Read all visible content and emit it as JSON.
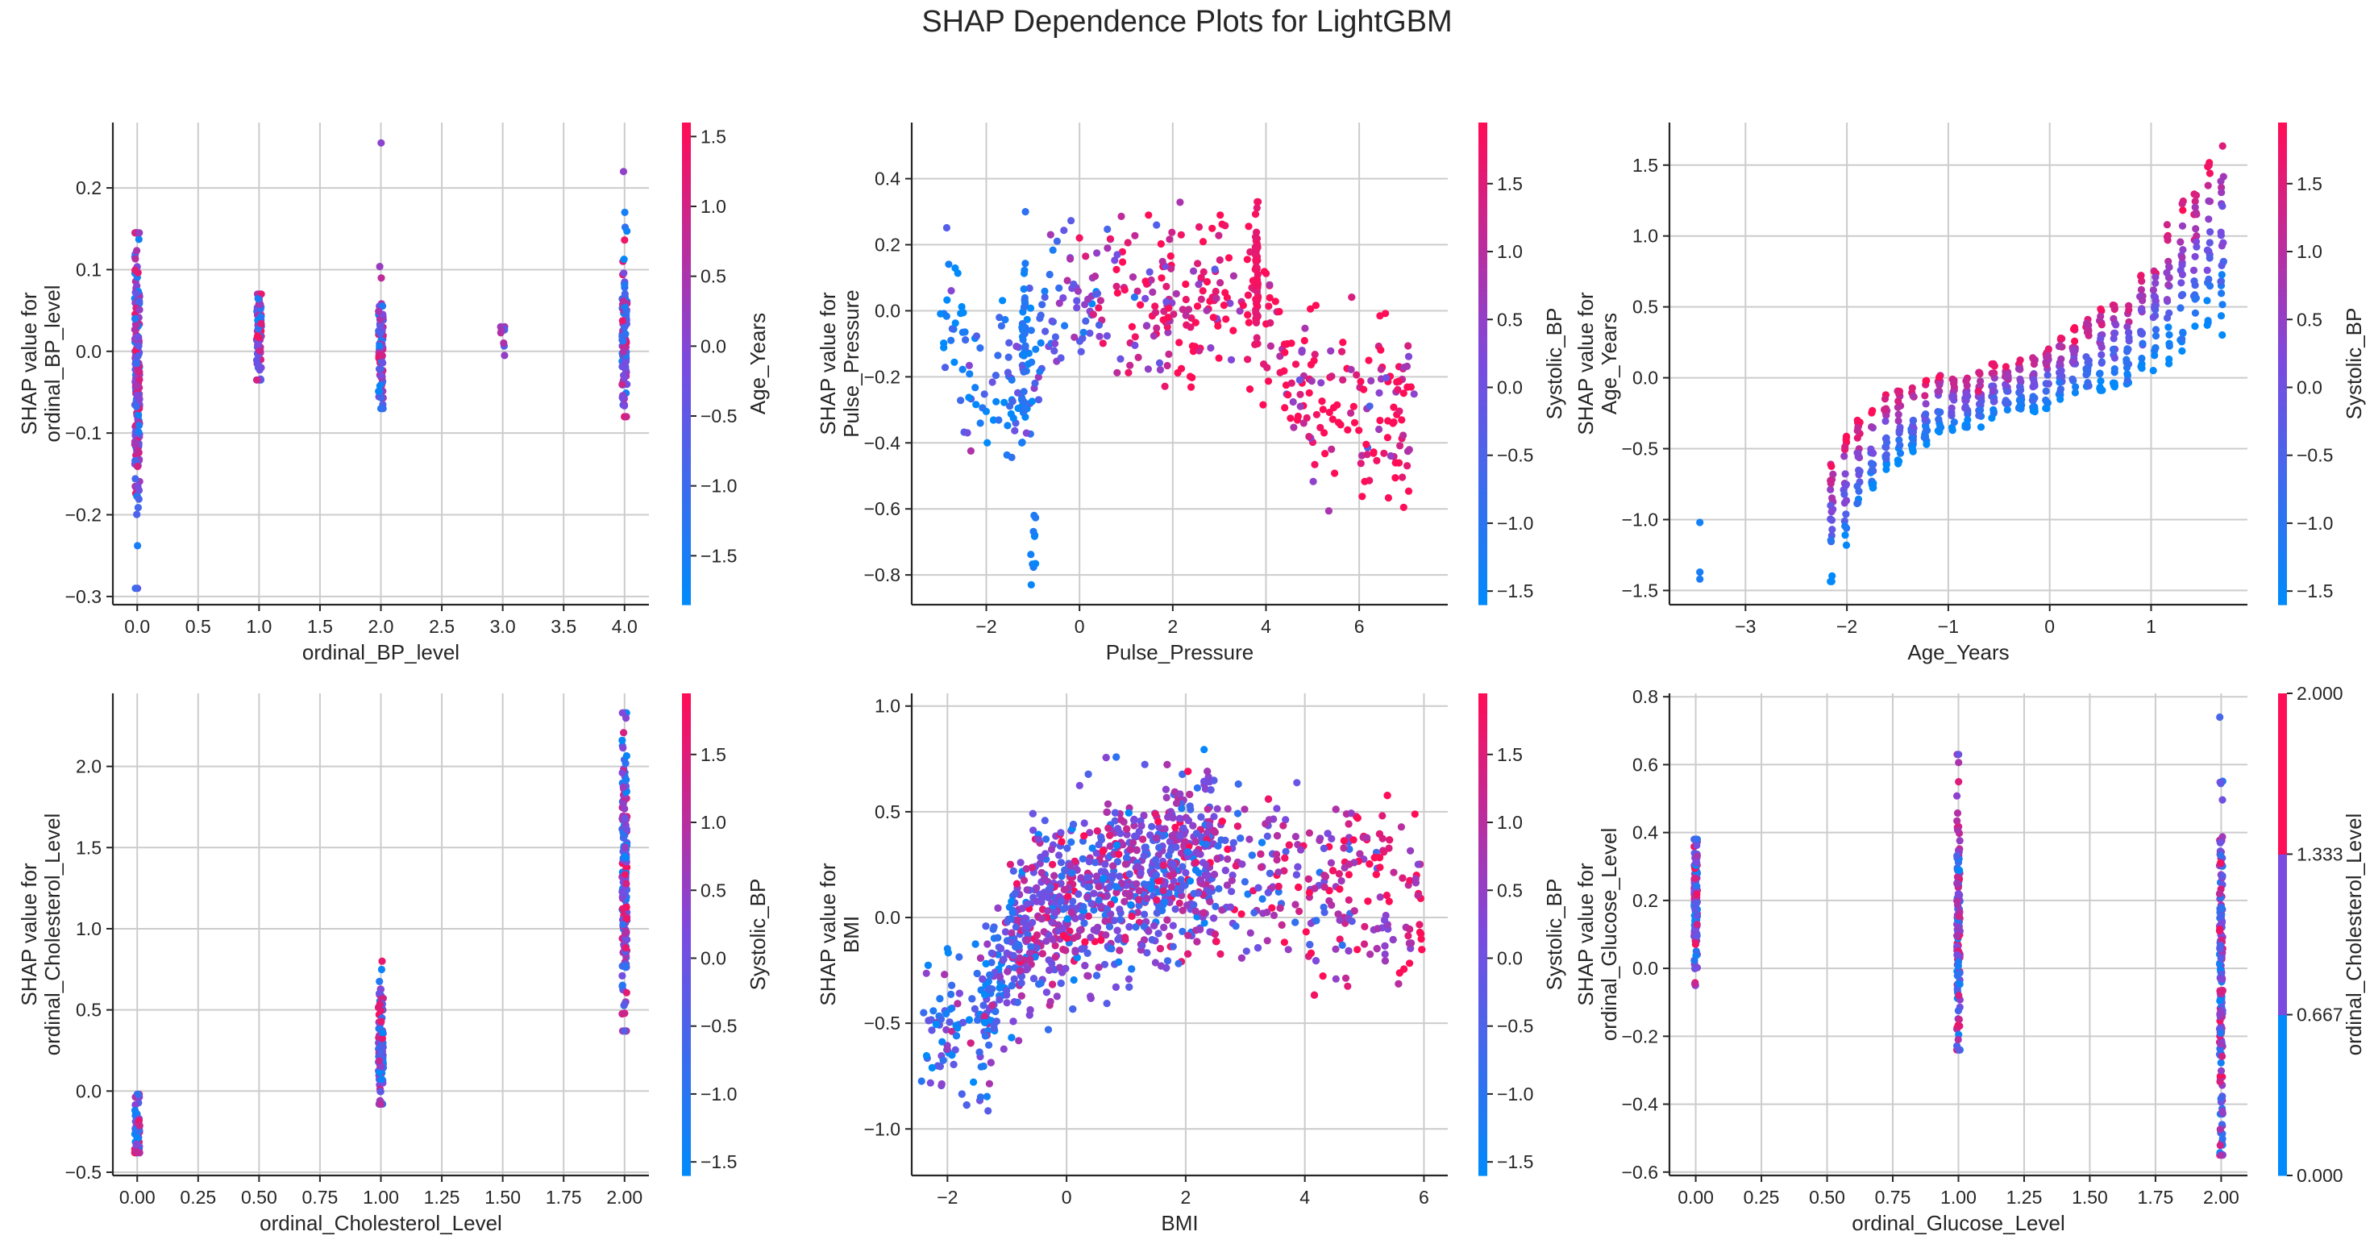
{
  "figure": {
    "suptitle": "SHAP Dependence Plots for LightGBM"
  },
  "colors": {
    "low": "#008afb",
    "mid": "#7a4be0",
    "high": "#ff0d57",
    "grid": "#cccccc",
    "axis": "#262626"
  },
  "chart_data": [
    {
      "type": "scatter",
      "xlabel": "ordinal_BP_level",
      "ylabel": "SHAP value for\nordinal_BP_level",
      "xlim": [
        -0.2,
        4.2
      ],
      "ylim": [
        -0.31,
        0.28
      ],
      "xticks": [
        0.0,
        0.5,
        1.0,
        1.5,
        2.0,
        2.5,
        3.0,
        3.5,
        4.0
      ],
      "xticklabels": [
        "0.0",
        "0.5",
        "1.0",
        "1.5",
        "2.0",
        "2.5",
        "3.0",
        "3.5",
        "4.0"
      ],
      "yticks": [
        -0.3,
        -0.2,
        -0.1,
        0.0,
        0.1,
        0.2
      ],
      "yticklabels": [
        "−0.3",
        "−0.2",
        "−0.1",
        "0.0",
        "0.1",
        "0.2"
      ],
      "colorbar": {
        "label": "Age_Years",
        "range": [
          -1.85,
          1.6
        ],
        "ticks": [
          -1.5,
          -1.0,
          -0.5,
          0.0,
          0.5,
          1.0,
          1.5
        ],
        "ticklabels": [
          "−1.5",
          "−1.0",
          "−0.5",
          "0.0",
          "0.5",
          "1.0",
          "1.5"
        ]
      },
      "clusters": [
        {
          "x": 0,
          "jitter": 0.02,
          "ymin": -0.29,
          "ymax": 0.145,
          "n": 220,
          "ymean": -0.02,
          "ysd": 0.085,
          "cmin": -1.8,
          "cmax": 1.5
        },
        {
          "x": 1,
          "jitter": 0.02,
          "ymin": -0.035,
          "ymax": 0.07,
          "n": 70,
          "ymean": 0.015,
          "ysd": 0.025,
          "cmin": -1.8,
          "cmax": 1.5
        },
        {
          "x": 2,
          "jitter": 0.02,
          "ymin": -0.07,
          "ymax": 0.255,
          "n": 90,
          "ymean": 0.0,
          "ysd": 0.04,
          "cmin": -1.8,
          "cmax": 1.5
        },
        {
          "x": 3,
          "jitter": 0.02,
          "ymin": -0.005,
          "ymax": 0.03,
          "n": 8,
          "ymean": 0.01,
          "ysd": 0.01,
          "cmin": -1.0,
          "cmax": 1.0
        },
        {
          "x": 4,
          "jitter": 0.02,
          "ymin": -0.08,
          "ymax": 0.22,
          "n": 110,
          "ymean": 0.01,
          "ysd": 0.055,
          "cmin": -1.8,
          "cmax": 1.5
        }
      ]
    },
    {
      "type": "scatter",
      "xlabel": "Pulse_Pressure",
      "ylabel": "SHAP value for\nPulse_Pressure",
      "xlim": [
        -3.6,
        7.9
      ],
      "ylim": [
        -0.89,
        0.57
      ],
      "xticks": [
        -2,
        0,
        2,
        4,
        6
      ],
      "xticklabels": [
        "−2",
        "0",
        "2",
        "4",
        "6"
      ],
      "yticks": [
        -0.8,
        -0.6,
        -0.4,
        -0.2,
        0.0,
        0.2,
        0.4
      ],
      "yticklabels": [
        "−0.8",
        "−0.6",
        "−0.4",
        "−0.2",
        "0.0",
        "0.2",
        "0.4"
      ],
      "colorbar": {
        "label": "Systolic_BP",
        "range": [
          -1.6,
          1.95
        ],
        "ticks": [
          -1.5,
          -1.0,
          -0.5,
          0.0,
          0.5,
          1.0,
          1.5
        ],
        "ticklabels": [
          "−1.5",
          "−1.0",
          "−0.5",
          "0.0",
          "0.5",
          "1.0",
          "1.5"
        ]
      },
      "curve": {
        "x": [
          -3.0,
          -2.2,
          -1.2,
          -0.6,
          0.0,
          0.8,
          1.6,
          2.4,
          3.0,
          3.8,
          4.4,
          5.2,
          6.0,
          7.2
        ],
        "y": [
          0.02,
          -0.22,
          -0.22,
          0.0,
          -0.02,
          0.05,
          0.06,
          0.05,
          0.06,
          0.05,
          -0.2,
          -0.3,
          -0.3,
          -0.35
        ],
        "spread": 0.12,
        "n": 480,
        "xspread": 0.12,
        "c": [
          -1.5,
          -1.3,
          -1.0,
          -0.3,
          0.0,
          1.2,
          1.5,
          1.6,
          1.6,
          1.7,
          1.8,
          1.8,
          1.8,
          1.8
        ]
      },
      "extra": [
        {
          "x": -1.0,
          "jitter": 0.06,
          "ymin": -0.83,
          "ymax": -0.62,
          "n": 10,
          "ymean": -0.72,
          "ysd": 0.06,
          "cmin": -1.5,
          "cmax": -1.0
        },
        {
          "x": 3.8,
          "jitter": 0.03,
          "ymin": -0.1,
          "ymax": 0.33,
          "n": 60,
          "ymean": 0.1,
          "ysd": 0.1,
          "cmin": 1.5,
          "cmax": 1.9
        },
        {
          "x": -1.2,
          "jitter": 0.04,
          "ymin": -0.4,
          "ymax": 0.3,
          "n": 40,
          "ymean": -0.15,
          "ysd": 0.15,
          "cmin": -1.5,
          "cmax": -0.8
        }
      ]
    },
    {
      "type": "scatter",
      "xlabel": "Age_Years",
      "ylabel": "SHAP value for\nAge_Years",
      "xlim": [
        -3.75,
        1.95
      ],
      "ylim": [
        -1.6,
        1.8
      ],
      "xticks": [
        -3,
        -2,
        -1,
        0,
        1
      ],
      "xticklabels": [
        "−3",
        "−2",
        "−1",
        "0",
        "1"
      ],
      "yticks": [
        -1.5,
        -1.0,
        -0.5,
        0.0,
        0.5,
        1.0,
        1.5
      ],
      "yticklabels": [
        "−1.5",
        "−1.0",
        "−0.5",
        "0.0",
        "0.5",
        "1.0",
        "1.5"
      ],
      "colorbar": {
        "label": "Systolic_BP",
        "range": [
          -1.6,
          1.95
        ],
        "ticks": [
          -1.5,
          -1.0,
          -0.5,
          0.0,
          0.5,
          1.0,
          1.5
        ],
        "ticklabels": [
          "−1.5",
          "−1.0",
          "−0.5",
          "0.0",
          "0.5",
          "1.0",
          "1.5"
        ]
      },
      "columns": {
        "x_start": -2.15,
        "x_end": 1.7,
        "count": 30,
        "ymid": [
          -1.0,
          -0.8,
          -0.65,
          -0.5,
          -0.4,
          -0.35,
          -0.3,
          -0.25,
          -0.2,
          -0.2,
          -0.15,
          -0.15,
          -0.1,
          -0.1,
          -0.05,
          -0.05,
          0.0,
          0.05,
          0.1,
          0.15,
          0.2,
          0.25,
          0.3,
          0.4,
          0.5,
          0.6,
          0.7,
          0.8,
          0.9,
          1.0
        ],
        "half": [
          0.45,
          0.4,
          0.35,
          0.3,
          0.28,
          0.26,
          0.25,
          0.24,
          0.22,
          0.2,
          0.2,
          0.2,
          0.2,
          0.2,
          0.2,
          0.2,
          0.22,
          0.24,
          0.26,
          0.28,
          0.3,
          0.32,
          0.35,
          0.4,
          0.45,
          0.5,
          0.55,
          0.6,
          0.65,
          0.7
        ],
        "per": 22
      },
      "extra": [
        {
          "x": -3.45,
          "jitter": 0.0,
          "ymin": -1.42,
          "ymax": -1.02,
          "n": 3,
          "ymean": -1.2,
          "ysd": 0.15,
          "cmin": -1.5,
          "cmax": -1.2
        }
      ]
    },
    {
      "type": "scatter",
      "xlabel": "ordinal_Cholesterol_Level",
      "ylabel": "SHAP value for\nordinal_Cholesterol_Level",
      "xlim": [
        -0.1,
        2.1
      ],
      "ylim": [
        -0.52,
        2.45
      ],
      "xticks": [
        0,
        0.25,
        0.5,
        0.75,
        1.0,
        1.25,
        1.5,
        1.75,
        2.0
      ],
      "xticklabels": [
        "0.00",
        "0.25",
        "0.50",
        "0.75",
        "1.00",
        "1.25",
        "1.50",
        "1.75",
        "2.00"
      ],
      "yticks": [
        -0.5,
        0.0,
        0.5,
        1.0,
        1.5,
        2.0
      ],
      "yticklabels": [
        "−0.5",
        "0.0",
        "0.5",
        "1.0",
        "1.5",
        "2.0"
      ],
      "colorbar": {
        "label": "Systolic_BP",
        "range": [
          -1.6,
          1.95
        ],
        "ticks": [
          -1.5,
          -1.0,
          -0.5,
          0.0,
          0.5,
          1.0,
          1.5
        ],
        "ticklabels": [
          "−1.5",
          "−1.0",
          "−0.5",
          "0.0",
          "0.5",
          "1.0",
          "1.5"
        ]
      },
      "clusters": [
        {
          "x": 0,
          "jitter": 0.01,
          "ymin": -0.38,
          "ymax": -0.02,
          "n": 60,
          "ymean": -0.2,
          "ysd": 0.1,
          "cmin": -1.6,
          "cmax": 1.9
        },
        {
          "x": 1,
          "jitter": 0.01,
          "ymin": -0.08,
          "ymax": 0.8,
          "n": 120,
          "ymean": 0.25,
          "ysd": 0.18,
          "cmin": -1.6,
          "cmax": 1.9
        },
        {
          "x": 2,
          "jitter": 0.01,
          "ymin": 0.37,
          "ymax": 2.33,
          "n": 180,
          "ymean": 1.3,
          "ysd": 0.45,
          "cmin": -1.6,
          "cmax": 1.9
        }
      ]
    },
    {
      "type": "scatter",
      "xlabel": "BMI",
      "ylabel": "SHAP value for\nBMI",
      "xlim": [
        -2.6,
        6.4
      ],
      "ylim": [
        -1.22,
        1.06
      ],
      "xticks": [
        -2,
        0,
        2,
        4,
        6
      ],
      "xticklabels": [
        "−2",
        "0",
        "2",
        "4",
        "6"
      ],
      "yticks": [
        -1.0,
        -0.5,
        0.0,
        0.5,
        1.0
      ],
      "yticklabels": [
        "−1.0",
        "−0.5",
        "0.0",
        "0.5",
        "1.0"
      ],
      "colorbar": {
        "label": "Systolic_BP",
        "range": [
          -1.6,
          1.95
        ],
        "ticks": [
          -1.5,
          -1.0,
          -0.5,
          0.0,
          0.5,
          1.0,
          1.5
        ],
        "ticklabels": [
          "−1.5",
          "−1.0",
          "−0.5",
          "0.0",
          "0.5",
          "1.0",
          "1.5"
        ]
      },
      "curve": {
        "x": [
          -2.4,
          -1.8,
          -1.4,
          -1.0,
          -0.5,
          0.0,
          0.6,
          1.2,
          2.0,
          2.8,
          3.6,
          4.4,
          5.2,
          6.0
        ],
        "y": [
          -0.5,
          -0.55,
          -0.5,
          -0.15,
          0.0,
          0.05,
          0.12,
          0.2,
          0.25,
          0.25,
          0.2,
          0.15,
          0.12,
          0.1
        ],
        "spread": 0.2,
        "n": 1800,
        "xspread": 0.35,
        "c": [
          -0.2,
          -0.6,
          -0.8,
          0.0,
          0.2,
          0.2,
          0.3,
          0.3,
          0.3,
          0.4,
          0.7,
          0.9,
          1.2,
          1.4
        ]
      }
    },
    {
      "type": "scatter",
      "xlabel": "ordinal_Glucose_Level",
      "ylabel": "SHAP value for\nordinal_Glucose_Level",
      "xlim": [
        -0.1,
        2.1
      ],
      "ylim": [
        -0.61,
        0.81
      ],
      "xticks": [
        0,
        0.25,
        0.5,
        0.75,
        1.0,
        1.25,
        1.5,
        1.75,
        2.0
      ],
      "xticklabels": [
        "0.00",
        "0.25",
        "0.50",
        "0.75",
        "1.00",
        "1.25",
        "1.50",
        "1.75",
        "2.00"
      ],
      "yticks": [
        -0.6,
        -0.4,
        -0.2,
        0.0,
        0.2,
        0.4,
        0.6,
        0.8
      ],
      "yticklabels": [
        "−0.6",
        "−0.4",
        "−0.2",
        "0.0",
        "0.2",
        "0.4",
        "0.6",
        "0.8"
      ],
      "colorbar": {
        "label": "ordinal_Cholesterol_Level",
        "range": [
          0,
          2
        ],
        "ticks": [
          0,
          0.667,
          1.333,
          2.0
        ],
        "ticklabels": [
          "0.000",
          "0.667",
          "1.333",
          "2.000"
        ],
        "discrete": true
      },
      "clusters": [
        {
          "x": 0,
          "jitter": 0.006,
          "ymin": -0.05,
          "ymax": 0.38,
          "n": 140,
          "ymean": 0.2,
          "ysd": 0.1,
          "cmin": 0,
          "cmax": 2
        },
        {
          "x": 1,
          "jitter": 0.006,
          "ymin": -0.24,
          "ymax": 0.63,
          "n": 140,
          "ymean": 0.1,
          "ysd": 0.18,
          "cmin": 0,
          "cmax": 2
        },
        {
          "x": 2,
          "jitter": 0.006,
          "ymin": -0.55,
          "ymax": 0.74,
          "n": 180,
          "ymean": -0.05,
          "ysd": 0.25,
          "cmin": 0,
          "cmax": 2
        }
      ]
    }
  ]
}
